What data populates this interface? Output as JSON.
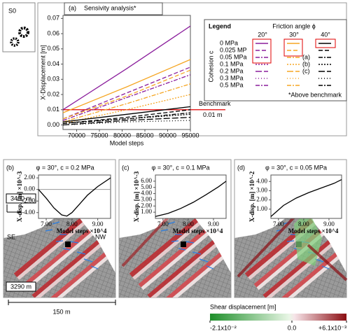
{
  "chart_data": [
    {
      "type": "line",
      "panel_label": "(a)",
      "title": "Sensivity analysis*",
      "x_label": "Model steps",
      "y_label": "X-Displacement [m]",
      "x": [
        67000,
        81000,
        95000
      ],
      "xlim": [
        67000,
        95000
      ],
      "xticks": [
        70000,
        75000,
        80000,
        85000,
        90000,
        95000
      ],
      "ylim": [
        -0.003,
        0.072
      ],
      "yticks": [
        {
          "value": 0,
          "label": "0.00"
        },
        0.01,
        0.02,
        0.03,
        0.04,
        0.05,
        0.06,
        0.07
      ],
      "series": [
        {
          "color": "#8b1e9c",
          "dash": "solid",
          "values": [
            0.01,
            0.037,
            0.065
          ]
        },
        {
          "color": "#8b1e9c",
          "dash": "dashed",
          "values": [
            0.004,
            0.021,
            0.038
          ]
        },
        {
          "color": "#8b1e9c",
          "dash": "dashdot",
          "values": [
            0.003,
            0.018,
            0.033
          ]
        },
        {
          "color": "#f5a623",
          "dash": "solid",
          "values": [
            0.008,
            0.025,
            0.043
          ]
        },
        {
          "color": "#f5a623",
          "dash": "dashed",
          "values": [
            0.004,
            0.019,
            0.036
          ]
        },
        {
          "color": "#f5a623",
          "dash": "dashdot",
          "values": [
            0.002,
            0.014,
            0.027
          ]
        },
        {
          "color": "#f5a623",
          "dash": "dotted",
          "values": [
            0.001,
            0.01,
            0.02
          ]
        },
        {
          "color": "#000000",
          "dash": "solid",
          "values": [
            0.002,
            0.007,
            0.012
          ]
        },
        {
          "color": "#000000",
          "dash": "dashed",
          "values": [
            0.001,
            0.005,
            0.01
          ]
        },
        {
          "color": "#000000",
          "dash": "dashdot",
          "values": [
            0.001,
            0.004,
            0.008
          ]
        },
        {
          "color": "#000000",
          "dash": "dotted",
          "values": [
            0.001,
            0.004,
            0.007
          ]
        },
        {
          "color": "#000000",
          "dash": "longdash",
          "values": [
            0,
            0.003,
            0.005
          ]
        },
        {
          "color": "#000000",
          "dash": "sparse",
          "values": [
            0,
            0.002,
            0.003
          ]
        }
      ],
      "benchmark": {
        "value": 0.01,
        "label": "Benchmark",
        "value_label": "0.01 m",
        "color": "#e00000"
      },
      "legend": {
        "title": "Legend",
        "column_title": "Friction angle ϕ",
        "columns": [
          "20°",
          "30°",
          "40°"
        ],
        "column_colors": [
          "#8b1e9c",
          "#f5a623",
          "#000000"
        ],
        "row_title": "Cohesion c",
        "rows": [
          "0 MPa",
          "0.025 MP",
          "0.05 MPa",
          "0.1 MPa",
          "0.2 MPa",
          "0.3 MPa",
          "0.5 MPa"
        ],
        "row_dashes": [
          "solid",
          "dashed",
          "dashdot",
          "dotted",
          "longdash",
          "sparse",
          "dashdot"
        ],
        "markers": [
          "(a)",
          "(b)",
          "(c)"
        ],
        "note": "*Above benchmark"
      }
    },
    {
      "type": "line",
      "panel_label": "(b)",
      "title": "φ = 30°, c = 0.2 MPa",
      "x_label": "Model steps ×10^4",
      "y_label": "X-disp. [m] ×10^-3",
      "x": [
        6.7,
        7.0,
        7.3,
        7.6,
        7.8,
        8.0,
        8.3,
        8.6,
        9.0,
        9.5
      ],
      "xlim": [
        6.7,
        9.5
      ],
      "xticks": [
        {
          "value": 7,
          "label": "7.00"
        },
        {
          "value": 8,
          "label": "8.00"
        },
        {
          "value": 9,
          "label": "9.00"
        }
      ],
      "ylim": [
        -5,
        2.5
      ],
      "yticks": [
        {
          "value": -4,
          "label": "-4.00"
        },
        {
          "value": -2,
          "label": "-2.00"
        },
        {
          "value": 0,
          "label": "0.00"
        },
        {
          "value": 2,
          "label": "2.00"
        }
      ],
      "hline": 0,
      "series": [
        {
          "color": "#000000",
          "dash": "solid",
          "values": [
            0,
            -1.5,
            -3.2,
            -4.4,
            -4.6,
            -4.0,
            -2.5,
            -1.0,
            0.5,
            2.0
          ]
        }
      ]
    },
    {
      "type": "line",
      "panel_label": "(c)",
      "title": "φ = 30°, c = 0.1 MPa",
      "x_label": "Model steps ×10^4",
      "y_label": "X-disp. [m] ×10^-3",
      "x": [
        6.7,
        7.2,
        7.7,
        8.2,
        8.7,
        9.2,
        9.5
      ],
      "xlim": [
        6.7,
        9.5
      ],
      "xticks": [
        {
          "value": 7,
          "label": "7.00"
        },
        {
          "value": 8,
          "label": "8.00"
        },
        {
          "value": 9,
          "label": "9.00"
        }
      ],
      "ylim": [
        0,
        7
      ],
      "yticks": [
        {
          "value": 1,
          "label": "1.00"
        },
        {
          "value": 2,
          "label": "2.00"
        },
        {
          "value": 3,
          "label": "3.00"
        },
        {
          "value": 4,
          "label": "4.00"
        },
        {
          "value": 5,
          "label": "5.00"
        },
        {
          "value": 6,
          "label": "6.00"
        }
      ],
      "series": [
        {
          "color": "#000000",
          "dash": "solid",
          "values": [
            0.3,
            0.8,
            1.6,
            2.6,
            3.8,
            5.1,
            6.0
          ]
        }
      ]
    },
    {
      "type": "line",
      "panel_label": "(d)",
      "title": "φ = 30°, c = 0.05 MPa",
      "x_label": "Model steps ×10^4",
      "y_label": "X-disp. [m] ×10^-2",
      "x": [
        6.7,
        7.2,
        7.7,
        8.2,
        8.7,
        9.2,
        9.5
      ],
      "xlim": [
        6.7,
        9.5
      ],
      "xticks": [
        {
          "value": 7,
          "label": "7.00"
        },
        {
          "value": 8,
          "label": "8.00"
        },
        {
          "value": 9,
          "label": "9.00"
        }
      ],
      "ylim": [
        0,
        4.7
      ],
      "yticks": [
        {
          "value": 1,
          "label": "1.00"
        },
        {
          "value": 2,
          "label": "2.00"
        },
        {
          "value": 3,
          "label": "3.00"
        },
        {
          "value": 4,
          "label": "4.00"
        }
      ],
      "series": [
        {
          "color": "#000000",
          "dash": "solid",
          "values": [
            0.2,
            1.4,
            2.2,
            2.8,
            3.3,
            3.8,
            4.2
          ]
        }
      ]
    }
  ],
  "scenario": "S0",
  "map_labels": {
    "elevation_top": "3400 m",
    "left": "SE",
    "right": "NW",
    "elevation_bottom": "3290 m",
    "scale": "150 m"
  },
  "colorbar": {
    "title": "Shear displacement [m]",
    "colors": [
      "#1e8f2a",
      "#e9f6e6",
      "#f6e4e8",
      "#8b0d12"
    ],
    "ticks": [
      {
        "value": -0.021,
        "label": "-2.1x10⁻²"
      },
      {
        "value": 0,
        "label": "0.0"
      },
      {
        "value": 0.0061,
        "label": "+6.1x10⁻³"
      }
    ]
  }
}
